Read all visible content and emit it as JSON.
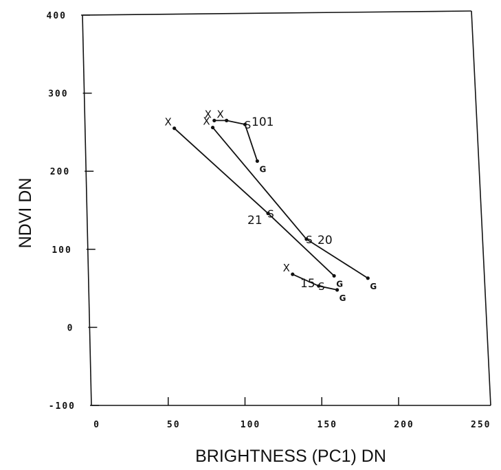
{
  "chart_data": {
    "type": "scatter",
    "title": "",
    "xlabel": "BRIGHTNESS (PC1) DN",
    "ylabel": "NDVI DN",
    "xlim": [
      0,
      250
    ],
    "ylim": [
      -100,
      400
    ],
    "x_ticks": [
      0,
      50,
      100,
      150,
      200,
      250
    ],
    "y_ticks": [
      -100,
      0,
      100,
      200,
      300,
      400
    ],
    "x_tick_labels": [
      "0",
      "50",
      "100",
      "150",
      "200",
      "250"
    ],
    "y_tick_labels": [
      "-100",
      "0",
      "100",
      "200",
      "300",
      "400"
    ],
    "grid": false,
    "series": [
      {
        "name": "101",
        "points": [
          {
            "label": "X",
            "x": 80,
            "y": 265
          },
          {
            "label": "X",
            "x": 88,
            "y": 265
          },
          {
            "label": "S",
            "x": 100,
            "y": 260
          },
          {
            "label": "G",
            "x": 108,
            "y": 213
          }
        ]
      },
      {
        "name": "21",
        "points": [
          {
            "label": "X",
            "x": 54,
            "y": 255
          },
          {
            "label": "S",
            "x": 115,
            "y": 146
          },
          {
            "label": "G",
            "x": 158,
            "y": 66
          }
        ]
      },
      {
        "name": "20",
        "points": [
          {
            "label": "X",
            "x": 79,
            "y": 256
          },
          {
            "label": "S",
            "x": 140,
            "y": 113
          },
          {
            "label": "G",
            "x": 180,
            "y": 63
          }
        ]
      },
      {
        "name": "15",
        "points": [
          {
            "label": "X",
            "x": 131,
            "y": 68
          },
          {
            "label": "S",
            "x": 148,
            "y": 53
          },
          {
            "label": "G",
            "x": 160,
            "y": 48
          }
        ]
      }
    ]
  }
}
